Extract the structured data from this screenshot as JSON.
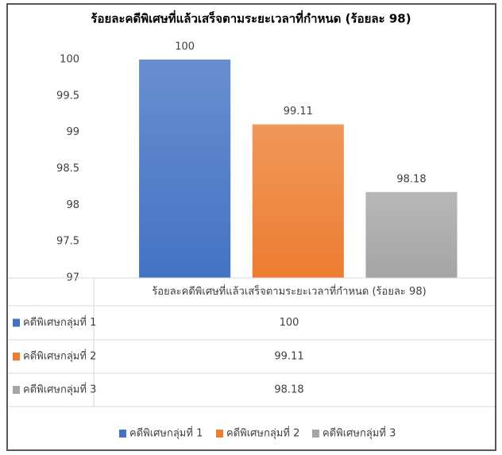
{
  "chart_data": {
    "type": "bar",
    "title": "ร้อยละคดีพิเศษที่แล้วเสร็จตามระยะเวลาที่กำหนด (ร้อยละ 98)",
    "categories": [
      "ร้อยละคดีพิเศษที่แล้วเสร็จตามระยะเวลาที่กำหนด (ร้อยละ 98)"
    ],
    "series": [
      {
        "name": "คดีพิเศษกลุ่มที่ 1",
        "color": "#4472c4",
        "values": [
          100
        ]
      },
      {
        "name": "คดีพิเศษกลุ่มที่ 2",
        "color": "#ed7d31",
        "values": [
          99.11
        ]
      },
      {
        "name": "คดีพิเศษกลุ่มที่ 3",
        "color": "#a5a5a5",
        "values": [
          98.18
        ]
      }
    ],
    "ylim": [
      97,
      100
    ],
    "yticks": [
      97,
      97.5,
      98,
      98.5,
      99,
      99.5,
      100
    ],
    "grid": false,
    "data_table": true,
    "legend": "bottom"
  }
}
